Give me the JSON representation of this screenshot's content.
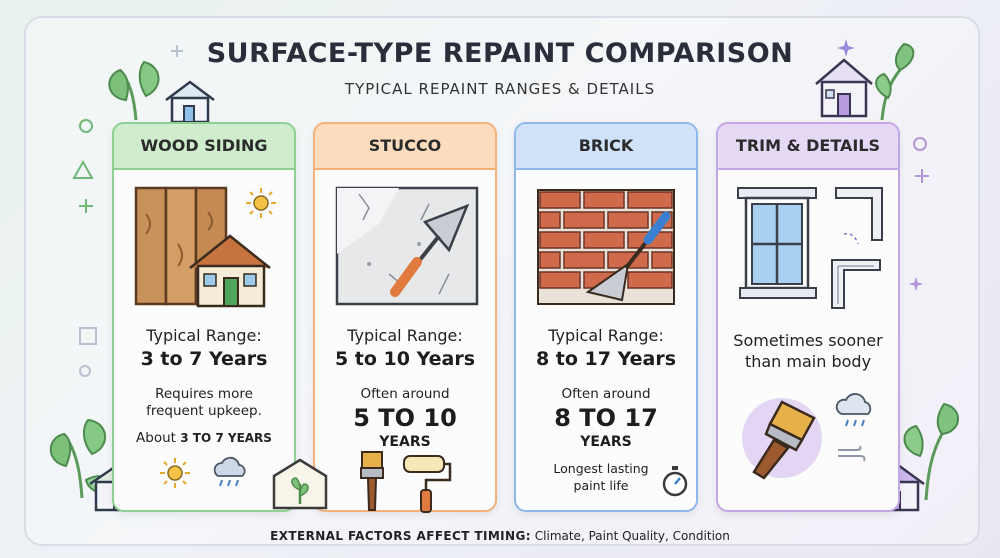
{
  "title": "SURFACE-TYPE REPAINT COMPARISON",
  "subtitle": "TYPICAL REPAINT RANGES & DETAILS",
  "colors": {
    "wood": "#8fcf93",
    "stucco": "#f3b27a",
    "brick": "#8fb8ea",
    "trim": "#c3a6e6"
  },
  "cards": [
    {
      "heading": "WOOD SIDING",
      "range_label": "Typical Range:",
      "range_value": "3 to 7 Years",
      "note": "Requires more frequent upkeep.",
      "about_prefix": "About",
      "about_value": "3 TO 7 YEARS",
      "icons": [
        "wood-planks-icon",
        "house-icon",
        "sun-icon",
        "rain-cloud-icon"
      ]
    },
    {
      "heading": "STUCCO",
      "range_label": "Typical Range:",
      "range_value": "5 to 10 Years",
      "often": "Often around",
      "big_top": "5 TO 10",
      "big_bottom": "YEARS",
      "icons": [
        "stucco-wall-icon",
        "trowel-icon",
        "plant-frame-icon",
        "paintbrush-icon",
        "paint-roller-icon"
      ]
    },
    {
      "heading": "BRICK",
      "range_label": "Typical Range:",
      "range_value": "8 to 17 Years",
      "often": "Often around",
      "big_top": "8 TO 17",
      "big_bottom": "YEARS",
      "note": "Longest lasting paint life",
      "icons": [
        "brick-wall-icon",
        "trowel-icon",
        "stopwatch-icon"
      ]
    },
    {
      "heading": "TRIM & DETAILS",
      "note": "Sometimes sooner than main body",
      "icons": [
        "window-trim-icon",
        "crown-molding-icon",
        "paintbrush-icon",
        "rain-cloud-icon",
        "house-icon"
      ]
    }
  ],
  "footer": {
    "bold": "EXTERNAL FACTORS AFFECT TIMING:",
    "rest": "Climate, Paint Quality, Condition"
  }
}
